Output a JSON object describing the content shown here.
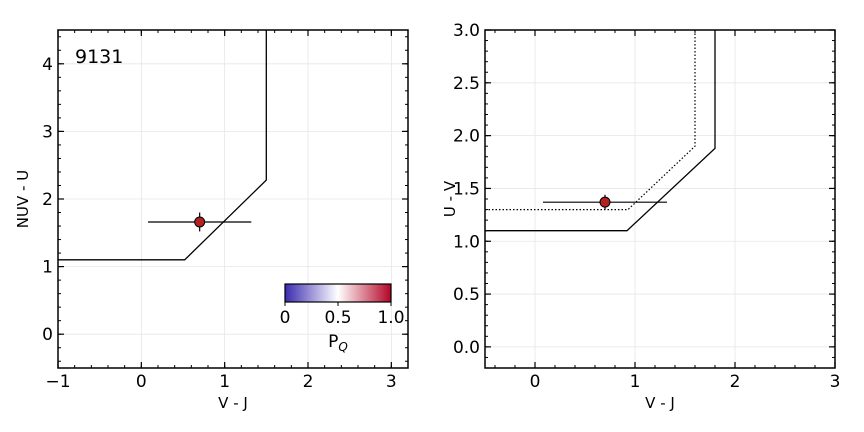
{
  "chart_data": [
    {
      "type": "scatter",
      "annotation": "9131",
      "xlabel": "V - J",
      "ylabel": "NUV - U",
      "xlim": [
        -1,
        3.2
      ],
      "ylim": [
        -0.5,
        4.5
      ],
      "xticks": [
        -1,
        0,
        1,
        2,
        3
      ],
      "xtick_labels": [
        "−1",
        "0",
        "1",
        "2",
        "3"
      ],
      "yticks": [
        0,
        1,
        2,
        3,
        4
      ],
      "ytick_labels": [
        "0",
        "1",
        "2",
        "3",
        "4"
      ],
      "grid": true,
      "boundary_solid": [
        [
          -1,
          1.1
        ],
        [
          0.52,
          1.1
        ],
        [
          1.5,
          2.28
        ],
        [
          1.5,
          4.5
        ]
      ],
      "points": [
        {
          "x": 0.7,
          "y": 1.66,
          "xerr": 0.62,
          "yerr": 0.14,
          "color": "#b22222"
        }
      ],
      "colorbar": {
        "label": "P_Q",
        "label_main": "P",
        "label_sub": "Q",
        "ticks": [
          0,
          0.5,
          1.0
        ],
        "tick_labels": [
          "0",
          "0.5",
          "1.0"
        ],
        "colormap": [
          "#3b2bb0",
          "#ffffff",
          "#b40426"
        ]
      }
    },
    {
      "type": "scatter",
      "xlabel": "V - J",
      "ylabel": "U - V",
      "xlim": [
        -0.5,
        3
      ],
      "ylim": [
        -0.2,
        3.0
      ],
      "xticks": [
        0,
        1,
        2,
        3
      ],
      "xtick_labels": [
        "0",
        "1",
        "2",
        "3"
      ],
      "yticks": [
        0.0,
        0.5,
        1.0,
        1.5,
        2.0,
        2.5,
        3.0
      ],
      "ytick_labels": [
        "0.0",
        "0.5",
        "1.0",
        "1.5",
        "2.0",
        "2.5",
        "3.0"
      ],
      "grid": true,
      "boundary_solid": [
        [
          -0.5,
          1.1
        ],
        [
          0.92,
          1.1
        ],
        [
          1.8,
          1.88
        ],
        [
          1.8,
          3.0
        ]
      ],
      "boundary_dotted": [
        [
          -0.5,
          1.3
        ],
        [
          0.93,
          1.3
        ],
        [
          1.6,
          1.9
        ],
        [
          1.6,
          3.0
        ]
      ],
      "points": [
        {
          "x": 0.7,
          "y": 1.37,
          "xerr": 0.62,
          "yerr": 0.07,
          "color": "#b22222"
        }
      ]
    }
  ]
}
